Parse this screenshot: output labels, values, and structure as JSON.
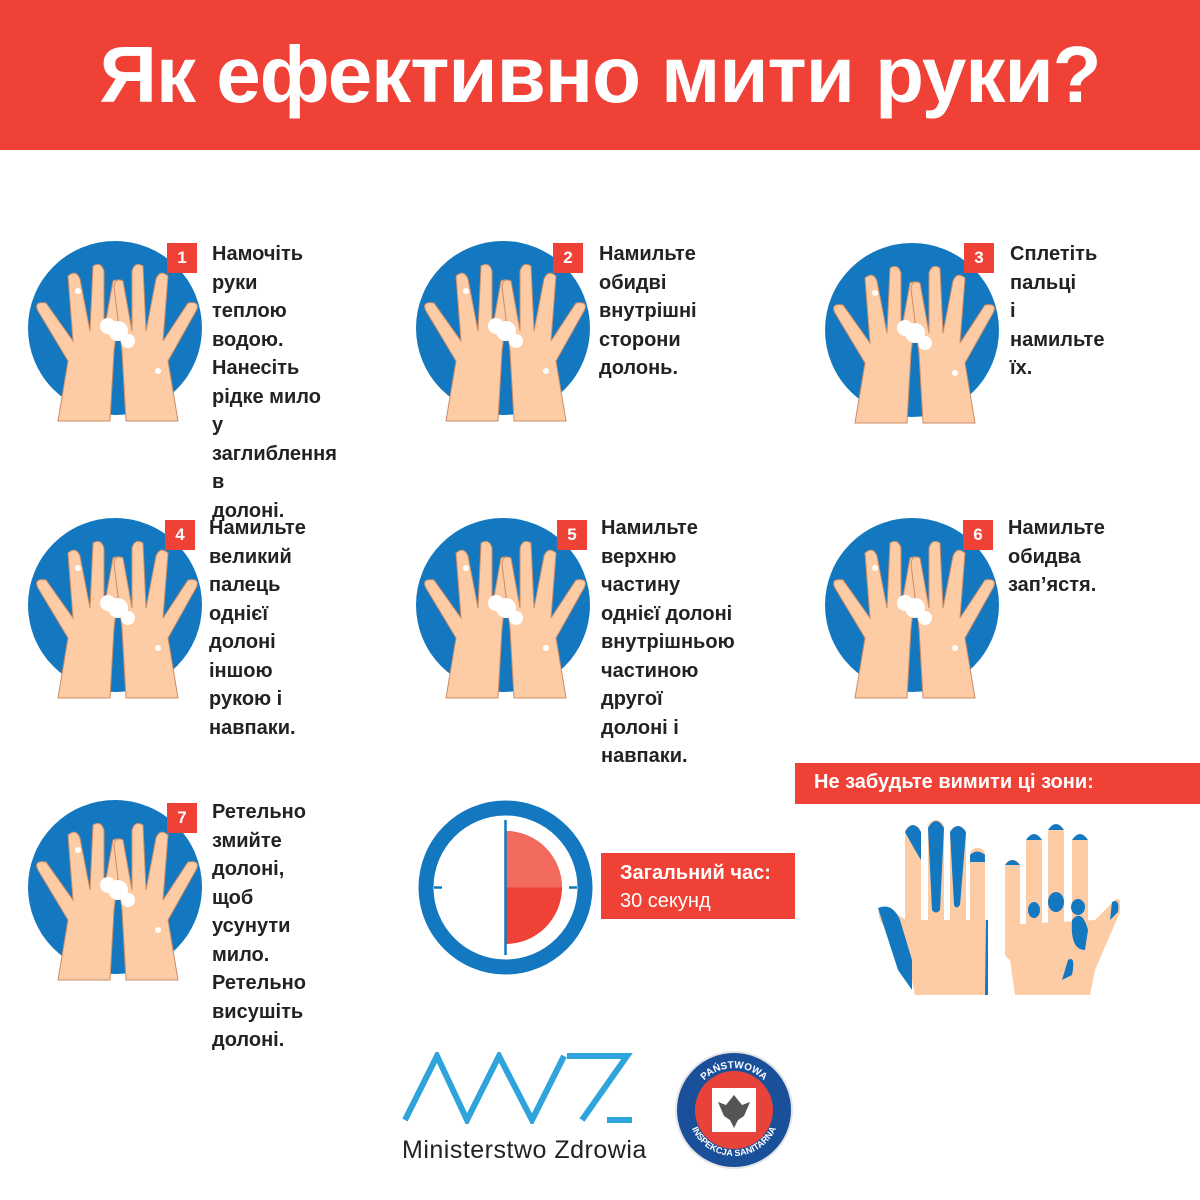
{
  "title": "Як ефективно мити руки?",
  "colors": {
    "accent": "#EF4136",
    "circle": "#1378BF",
    "skin": "#FDCBA4"
  },
  "steps": [
    {
      "number": "1",
      "text": "Намочіть руки\nтеплою водою.\nНанесіть\nрідке мило у\nзаглиблення в\nдолоні."
    },
    {
      "number": "2",
      "text": "Намильте обидві\nвнутрішні сторони\nдолонь."
    },
    {
      "number": "3",
      "text": "Сплетіть\nпальці\nі намильте їх."
    },
    {
      "number": "4",
      "text": "Намильте великий\nпалець однієї\nдолоні іншою\nрукою і навпаки."
    },
    {
      "number": "5",
      "text": "Намильте\nверхню частину\nоднієї долоні\nвнутрішньою\nчастиною другої\nдолоні і навпаки."
    },
    {
      "number": "6",
      "text": "Намильте\nобидва зап’ястя."
    },
    {
      "number": "7",
      "text": "Ретельно змийте\nдолоні, щоб\nусунути мило.\nРетельно\nвисушіть долоні."
    }
  ],
  "timer": {
    "label": "Загальний час:",
    "value": "30 секунд",
    "progress_fraction": 0.5
  },
  "reminder": {
    "label": "Не забудьте вимити ці зони:"
  },
  "logos": {
    "ministry": "Ministerstwo Zdrowia",
    "inspection_top": "PAŃSTWOWA",
    "inspection_bottom": "INSPEKCJA SANITARNA"
  }
}
